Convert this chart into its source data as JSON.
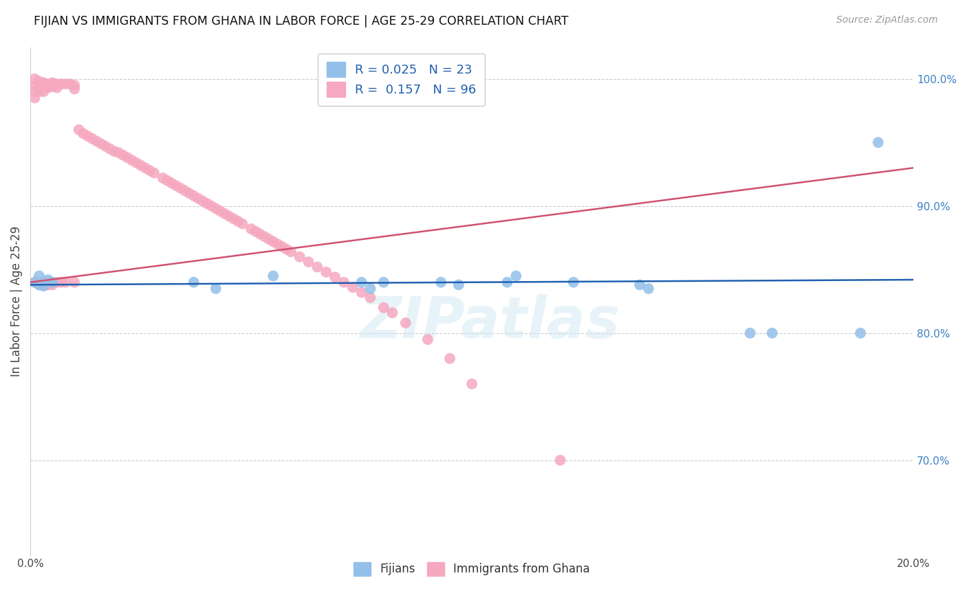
{
  "title": "FIJIAN VS IMMIGRANTS FROM GHANA IN LABOR FORCE | AGE 25-29 CORRELATION CHART",
  "source": "Source: ZipAtlas.com",
  "ylabel": "In Labor Force | Age 25-29",
  "xlim": [
    0.0,
    0.2
  ],
  "ylim": [
    0.625,
    1.025
  ],
  "xtick_positions": [
    0.0,
    0.04,
    0.08,
    0.12,
    0.16,
    0.2
  ],
  "xtick_labels": [
    "0.0%",
    "",
    "",
    "",
    "",
    "20.0%"
  ],
  "ytick_positions_right": [
    1.0,
    0.9,
    0.8,
    0.7
  ],
  "ytick_labels_right": [
    "100.0%",
    "90.0%",
    "80.0%",
    "70.0%"
  ],
  "fijian_color": "#92c0e8",
  "ghana_color": "#f5a8bf",
  "fijian_line_color": "#2060b0",
  "ghana_line_color": "#d05070",
  "legend_text_color": "#2060b0",
  "r_fijian": 0.025,
  "n_fijian": 23,
  "r_ghana": 0.157,
  "n_ghana": 96,
  "watermark": "ZIPatlas",
  "fijians_x": [
    0.001,
    0.002,
    0.002,
    0.003,
    0.004,
    0.005,
    0.037,
    0.042,
    0.055,
    0.075,
    0.077,
    0.08,
    0.093,
    0.097,
    0.108,
    0.11,
    0.123,
    0.138,
    0.14,
    0.163,
    0.168,
    0.188,
    0.192
  ],
  "fijians_y": [
    0.84,
    0.838,
    0.845,
    0.837,
    0.842,
    0.84,
    0.84,
    0.835,
    0.845,
    0.84,
    0.835,
    0.84,
    0.84,
    0.838,
    0.84,
    0.845,
    0.84,
    0.838,
    0.835,
    0.8,
    0.8,
    0.8,
    0.95
  ],
  "ghana_x": [
    0.001,
    0.001,
    0.001,
    0.001,
    0.001,
    0.002,
    0.002,
    0.002,
    0.002,
    0.003,
    0.003,
    0.003,
    0.003,
    0.003,
    0.004,
    0.004,
    0.004,
    0.004,
    0.005,
    0.005,
    0.005,
    0.005,
    0.006,
    0.006,
    0.006,
    0.007,
    0.007,
    0.008,
    0.008,
    0.009,
    0.01,
    0.01,
    0.01,
    0.011,
    0.012,
    0.013,
    0.014,
    0.015,
    0.016,
    0.017,
    0.018,
    0.019,
    0.02,
    0.021,
    0.022,
    0.023,
    0.024,
    0.025,
    0.026,
    0.027,
    0.028,
    0.03,
    0.031,
    0.032,
    0.033,
    0.034,
    0.035,
    0.036,
    0.037,
    0.038,
    0.039,
    0.04,
    0.041,
    0.042,
    0.043,
    0.044,
    0.045,
    0.046,
    0.047,
    0.048,
    0.05,
    0.051,
    0.052,
    0.053,
    0.054,
    0.055,
    0.056,
    0.057,
    0.058,
    0.059,
    0.061,
    0.063,
    0.065,
    0.067,
    0.069,
    0.071,
    0.073,
    0.075,
    0.077,
    0.08,
    0.082,
    0.085,
    0.09,
    0.095,
    0.1,
    0.12
  ],
  "ghana_y": [
    1.0,
    0.995,
    0.99,
    0.985,
    0.84,
    0.998,
    0.993,
    0.99,
    0.838,
    0.997,
    0.994,
    0.99,
    0.84,
    0.838,
    0.996,
    0.993,
    0.84,
    0.838,
    0.997,
    0.994,
    0.84,
    0.838,
    0.996,
    0.993,
    0.84,
    0.996,
    0.84,
    0.996,
    0.84,
    0.996,
    0.995,
    0.992,
    0.84,
    0.96,
    0.957,
    0.955,
    0.953,
    0.951,
    0.949,
    0.947,
    0.945,
    0.943,
    0.942,
    0.94,
    0.938,
    0.936,
    0.934,
    0.932,
    0.93,
    0.928,
    0.926,
    0.922,
    0.92,
    0.918,
    0.916,
    0.914,
    0.912,
    0.91,
    0.908,
    0.906,
    0.904,
    0.902,
    0.9,
    0.898,
    0.896,
    0.894,
    0.892,
    0.89,
    0.888,
    0.886,
    0.882,
    0.88,
    0.878,
    0.876,
    0.874,
    0.872,
    0.87,
    0.868,
    0.866,
    0.864,
    0.86,
    0.856,
    0.852,
    0.848,
    0.844,
    0.84,
    0.836,
    0.832,
    0.828,
    0.82,
    0.816,
    0.808,
    0.795,
    0.78,
    0.76,
    0.7
  ]
}
